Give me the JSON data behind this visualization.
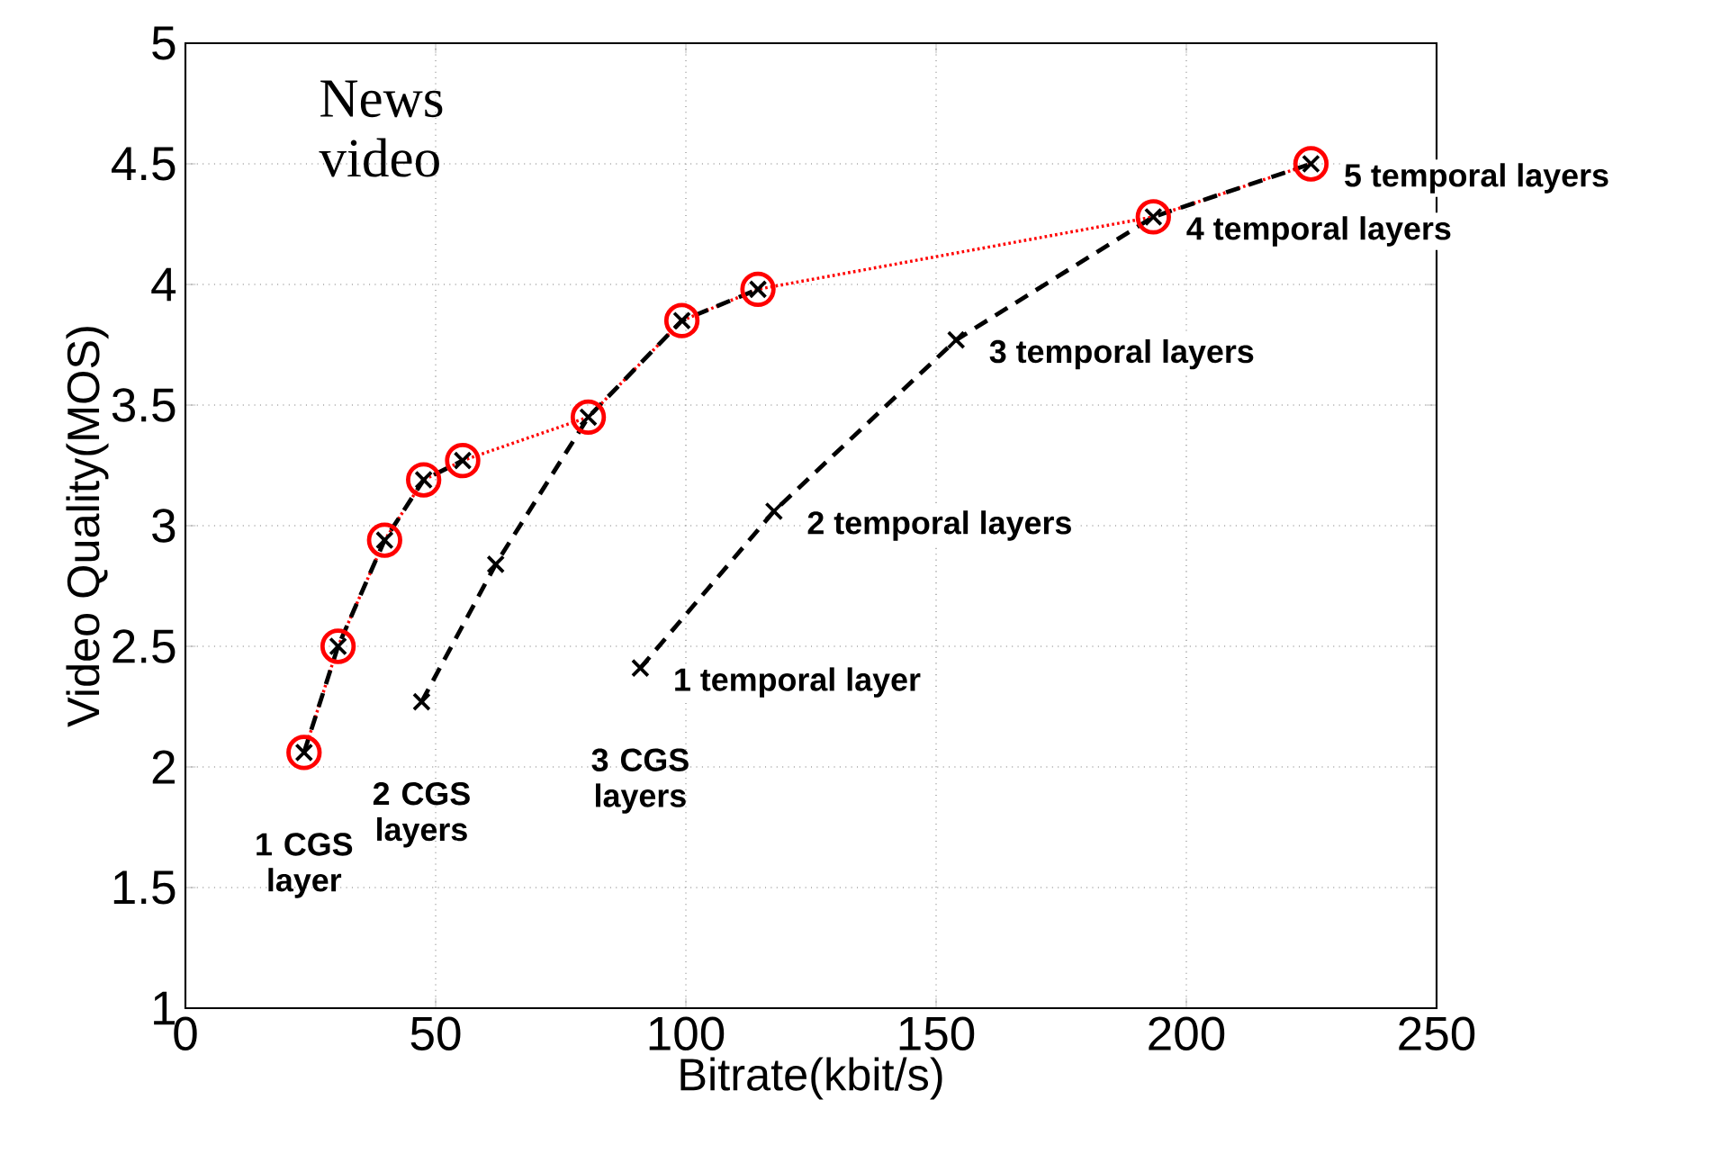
{
  "chart_data": {
    "type": "line",
    "xlabel": "Bitrate(kbit/s)",
    "ylabel": "Video Quality(MOS)",
    "xlim": [
      0,
      250
    ],
    "ylim": [
      1,
      5
    ],
    "xticks": [
      0,
      50,
      100,
      150,
      200,
      250
    ],
    "yticks": [
      1,
      1.5,
      2,
      2.5,
      3,
      3.5,
      4,
      4.5,
      5
    ],
    "grid": true,
    "series": [
      {
        "color": "#ff0000",
        "marker": "circle",
        "line_style": "dotted",
        "x": [
          23.7,
          30.5,
          39.8,
          47.6,
          55.4,
          80.5,
          99.2,
          114.4,
          193.4,
          224.9
        ],
        "values": [
          2.06,
          2.5,
          2.94,
          3.19,
          3.27,
          3.45,
          3.85,
          3.98,
          4.28,
          4.5
        ]
      },
      {
        "color": "#000000",
        "marker": "cross",
        "line_style": "dashed",
        "x": [
          23.7,
          30.5,
          39.8,
          47.6,
          55.4
        ],
        "values": [
          2.06,
          2.5,
          2.94,
          3.19,
          3.27
        ]
      },
      {
        "color": "#000000",
        "marker": "cross",
        "line_style": "dashed",
        "x": [
          47.2,
          62.0,
          80.5,
          99.2,
          114.4
        ],
        "values": [
          2.27,
          2.84,
          3.45,
          3.85,
          3.98
        ]
      },
      {
        "color": "#000000",
        "marker": "cross",
        "line_style": "dashed",
        "x": [
          90.9,
          117.6,
          154.0,
          193.4,
          224.9
        ],
        "values": [
          2.41,
          3.06,
          3.77,
          4.28,
          4.5
        ]
      }
    ],
    "annotations": [
      {
        "text": "1 CGS layer",
        "x": 23.7,
        "y": 2.06
      },
      {
        "text": "2 CGS layers",
        "x": 47.2,
        "y": 2.27
      },
      {
        "text": "3 CGS layers",
        "x": 90.9,
        "y": 2.41
      },
      {
        "text": "1 temporal layer",
        "x": 90.9,
        "y": 2.41
      },
      {
        "text": "2 temporal layers",
        "x": 117.6,
        "y": 3.06
      },
      {
        "text": "3 temporal layers",
        "x": 154.0,
        "y": 3.77
      },
      {
        "text": "4 temporal layers",
        "x": 193.4,
        "y": 4.28
      },
      {
        "text": "5 temporal layers",
        "x": 224.9,
        "y": 4.5
      },
      "News video"
    ]
  }
}
